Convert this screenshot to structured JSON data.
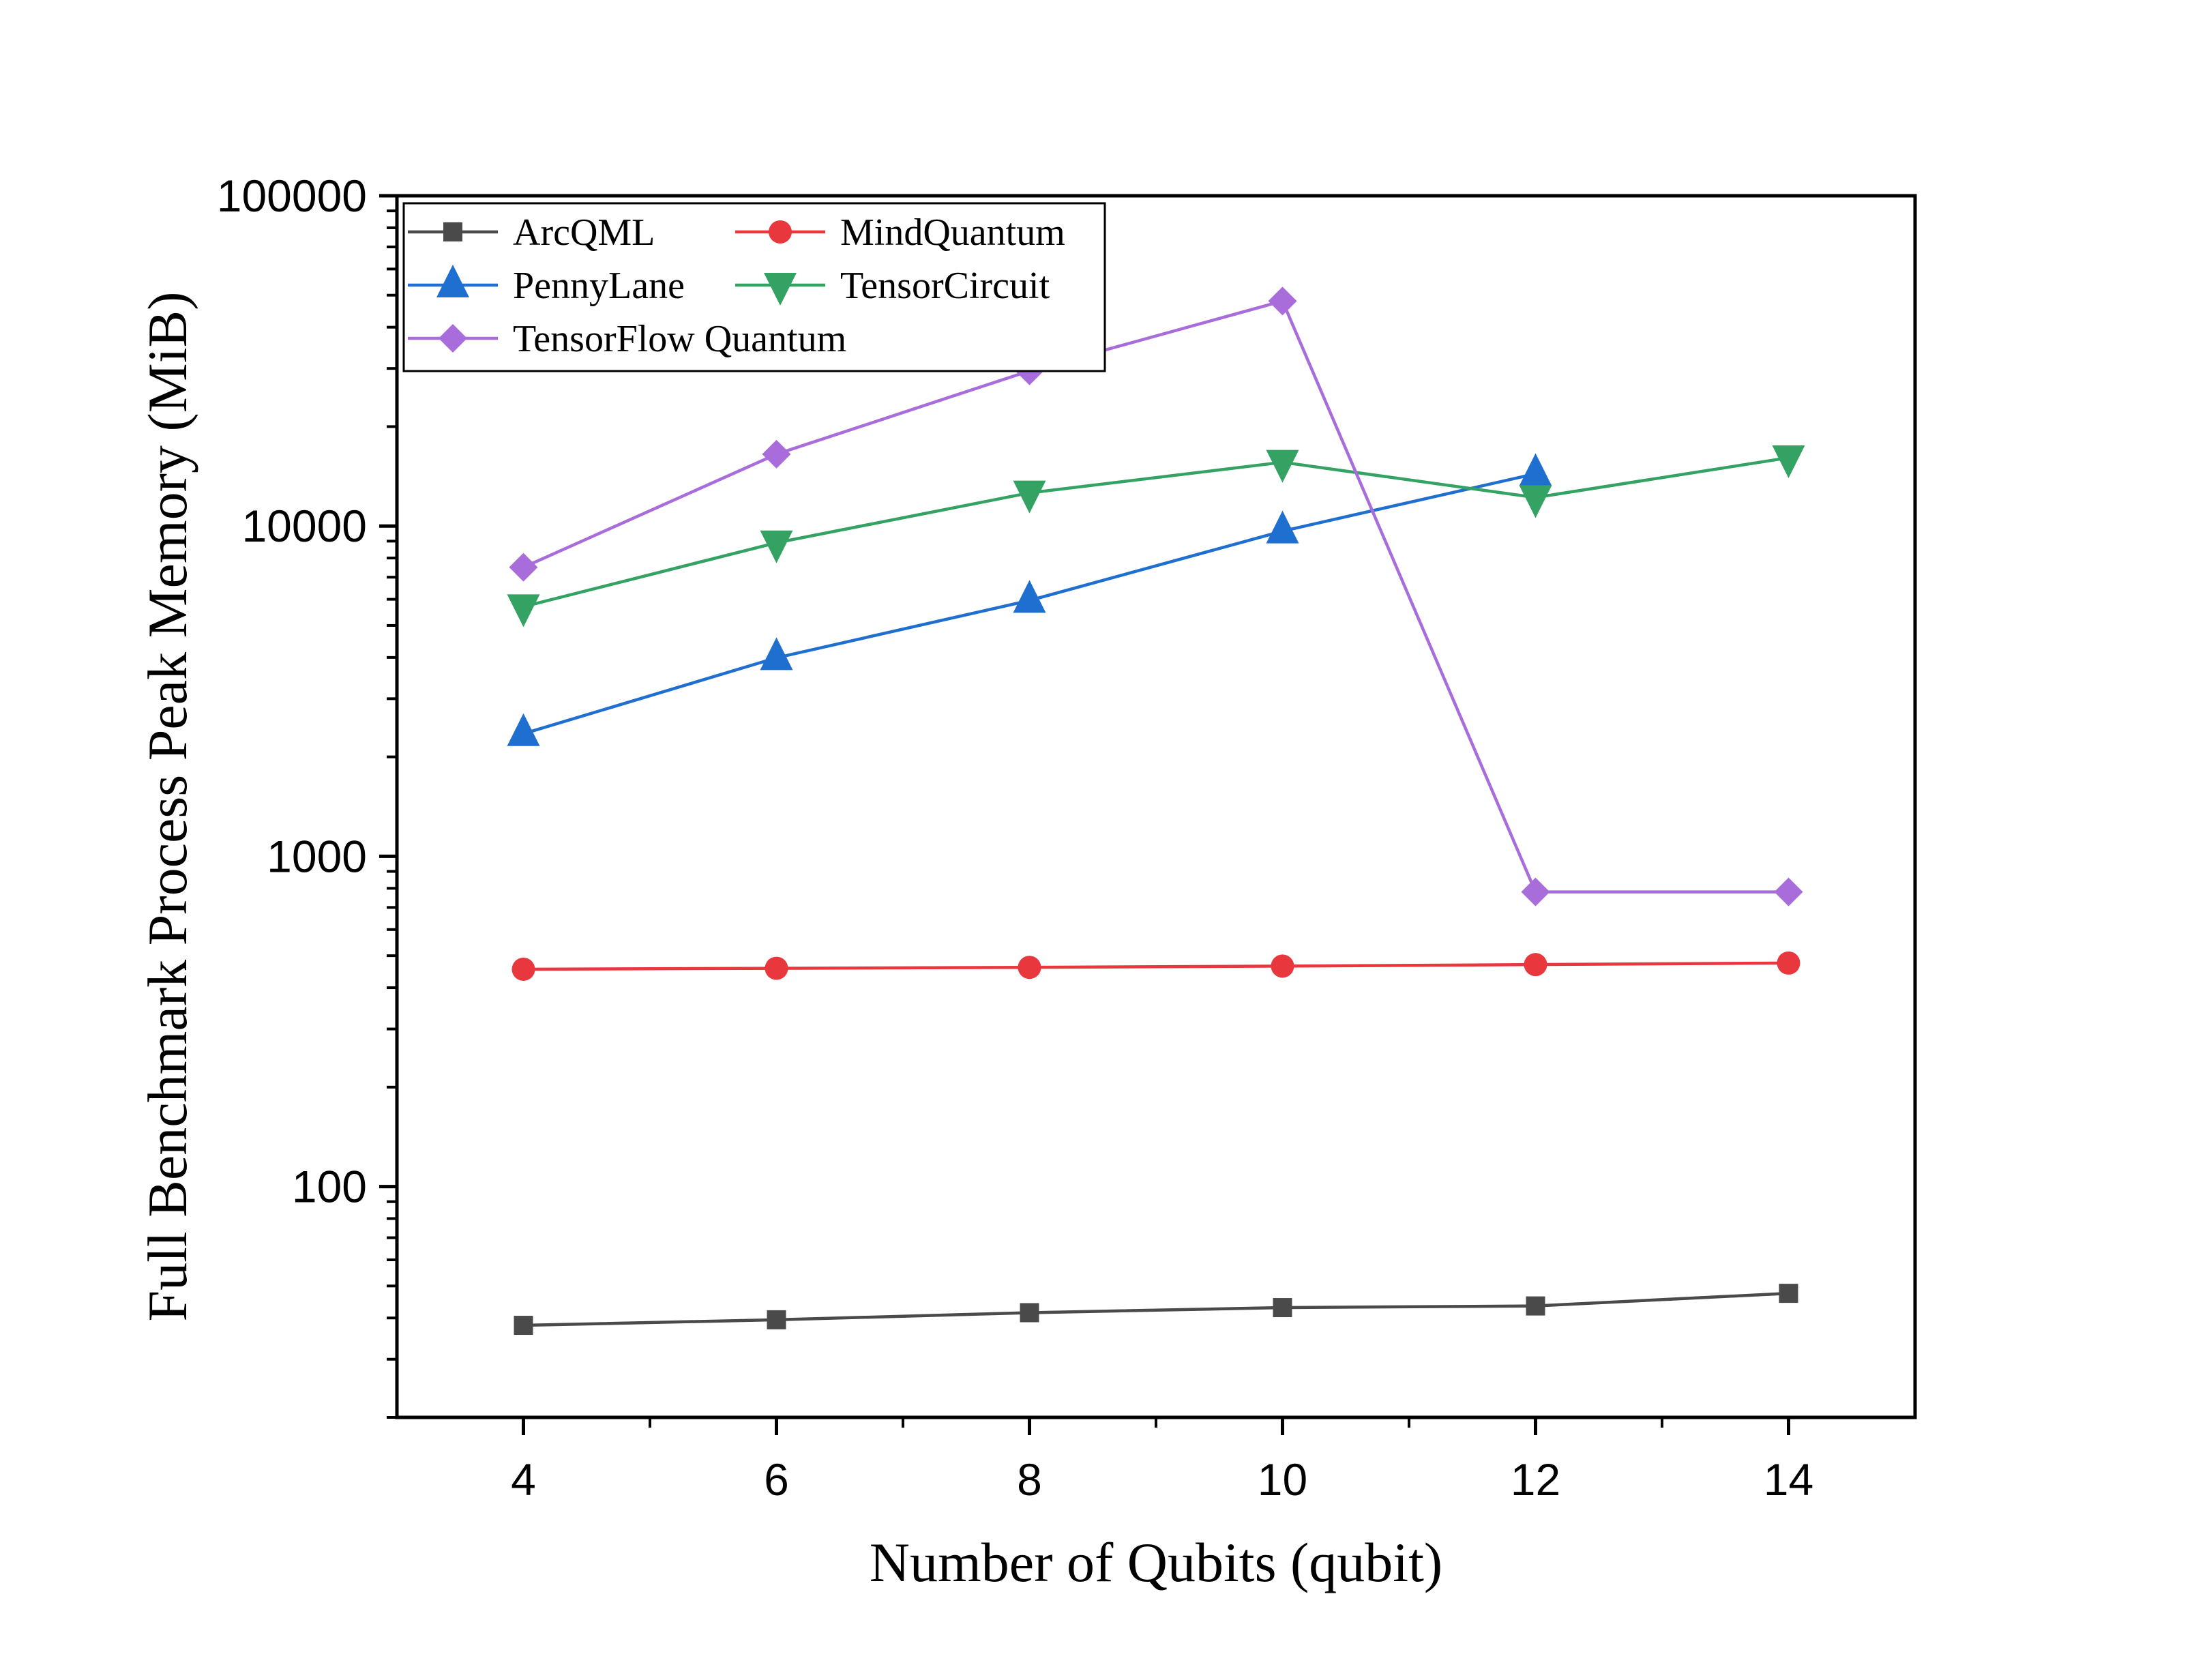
{
  "chart_data": {
    "type": "line",
    "title": "",
    "xlabel": "Number of Qubits (qubit)",
    "ylabel": "Full Benchmark Process Peak Memory (MiB)",
    "x": [
      4,
      6,
      8,
      10,
      12,
      14
    ],
    "xlim": [
      3,
      15
    ],
    "xticks": [
      "4",
      "6",
      "8",
      "10",
      "12",
      "14"
    ],
    "yscale": "log",
    "ylim": [
      20,
      100000
    ],
    "yticks": [
      "100",
      "1000",
      "10000",
      "100000"
    ],
    "grid": false,
    "legend_position": "top-left",
    "series": [
      {
        "name": "ArcQML",
        "marker": "square",
        "color": "#4a4a4a",
        "values": [
          38,
          39.5,
          41.5,
          43,
          43.5,
          47.5
        ]
      },
      {
        "name": "MindQuantum",
        "marker": "circle",
        "color": "#e8383d",
        "values": [
          455,
          458,
          461,
          465,
          470,
          475
        ]
      },
      {
        "name": "PennyLane",
        "marker": "triangle-up",
        "color": "#1f6fd1",
        "values": [
          2350,
          3990,
          5950,
          9650,
          14400,
          null
        ]
      },
      {
        "name": "TensorCircuit",
        "marker": "triangle-down",
        "color": "#34a263",
        "values": [
          5700,
          8900,
          12600,
          15600,
          12200,
          16100
        ]
      },
      {
        "name": "TensorFlow Quantum",
        "marker": "diamond",
        "color": "#a86ddb",
        "values": [
          7500,
          16500,
          29500,
          48000,
          780,
          780
        ]
      }
    ]
  }
}
